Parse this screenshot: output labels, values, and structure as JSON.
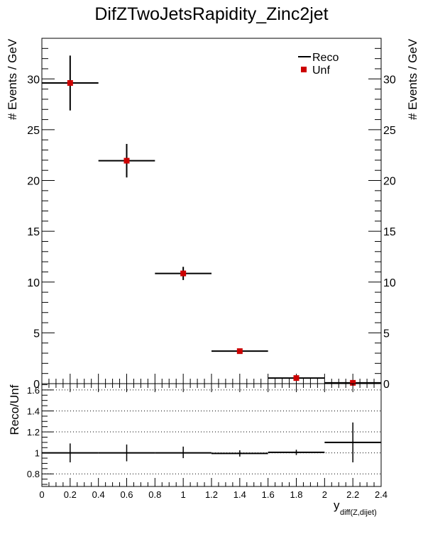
{
  "chart_data": [
    {
      "type": "scatter",
      "title": "DifZTwoJetsRapidity_Zinc2jet",
      "ylabel": "# Events / GeV",
      "ylim": [
        0,
        34
      ],
      "xlim": [
        0,
        2.4
      ],
      "legend_position": "top-right",
      "series": [
        {
          "name": "Reco",
          "style": "errorbar-cross",
          "color": "#000000",
          "points": [
            {
              "x": 0.2,
              "xlo": 0.0,
              "xhi": 0.4,
              "y": 29.6,
              "ylo": 26.9,
              "yhi": 32.3
            },
            {
              "x": 0.6,
              "xlo": 0.4,
              "xhi": 0.8,
              "y": 21.95,
              "ylo": 20.3,
              "yhi": 23.6
            },
            {
              "x": 1.0,
              "xlo": 0.8,
              "xhi": 1.2,
              "y": 10.85,
              "ylo": 10.2,
              "yhi": 11.5
            },
            {
              "x": 1.4,
              "xlo": 1.2,
              "xhi": 1.6,
              "y": 3.2,
              "ylo": 2.95,
              "yhi": 3.45
            },
            {
              "x": 1.8,
              "xlo": 1.6,
              "xhi": 2.0,
              "y": 0.55,
              "ylo": 0.45,
              "yhi": 0.65
            },
            {
              "x": 2.2,
              "xlo": 2.0,
              "xhi": 2.4,
              "y": 0.08,
              "ylo": 0.03,
              "yhi": 0.13
            }
          ]
        },
        {
          "name": "Unf",
          "style": "square-marker",
          "color": "#cc0000",
          "points": [
            {
              "x": 0.2,
              "y": 29.6
            },
            {
              "x": 0.6,
              "y": 21.95
            },
            {
              "x": 1.0,
              "y": 10.85
            },
            {
              "x": 1.4,
              "y": 3.2
            },
            {
              "x": 1.8,
              "y": 0.55
            },
            {
              "x": 2.2,
              "y": 0.08
            }
          ]
        }
      ],
      "yticks": [
        0,
        5,
        10,
        15,
        20,
        25,
        30
      ],
      "grid": false
    },
    {
      "type": "scatter",
      "title": "",
      "ylabel": "Reco/Unf",
      "xlabel": "y",
      "xlabel_sub": "diff(Z,dijet)",
      "ylim": [
        0.68,
        1.66
      ],
      "xlim": [
        0,
        2.4
      ],
      "reference_line": 1.0,
      "grid": "horizontal-dotted",
      "grid_values": [
        0.8,
        1.0,
        1.2,
        1.4,
        1.6
      ],
      "yticks": [
        0.8,
        1,
        1.2,
        1.4,
        1.6
      ],
      "xticks": [
        0,
        0.2,
        0.4,
        0.6,
        0.8,
        1,
        1.2,
        1.4,
        1.6,
        1.8,
        2,
        2.2,
        2.4
      ],
      "series": [
        {
          "name": "",
          "style": "errorbar-cross",
          "color": "#000000",
          "points": [
            {
              "x": 0.2,
              "xlo": 0.0,
              "xhi": 0.4,
              "y": 1.0,
              "ylo": 0.91,
              "yhi": 1.09
            },
            {
              "x": 0.6,
              "xlo": 0.4,
              "xhi": 0.8,
              "y": 1.0,
              "ylo": 0.92,
              "yhi": 1.08
            },
            {
              "x": 1.0,
              "xlo": 0.8,
              "xhi": 1.2,
              "y": 1.0,
              "ylo": 0.95,
              "yhi": 1.06
            },
            {
              "x": 1.4,
              "xlo": 1.2,
              "xhi": 1.6,
              "y": 0.995,
              "ylo": 0.965,
              "yhi": 1.025
            },
            {
              "x": 1.8,
              "xlo": 1.6,
              "xhi": 2.0,
              "y": 1.005,
              "ylo": 0.98,
              "yhi": 1.03
            },
            {
              "x": 2.2,
              "xlo": 2.0,
              "xhi": 2.4,
              "y": 1.1,
              "ylo": 0.91,
              "yhi": 1.29
            }
          ]
        }
      ]
    }
  ]
}
